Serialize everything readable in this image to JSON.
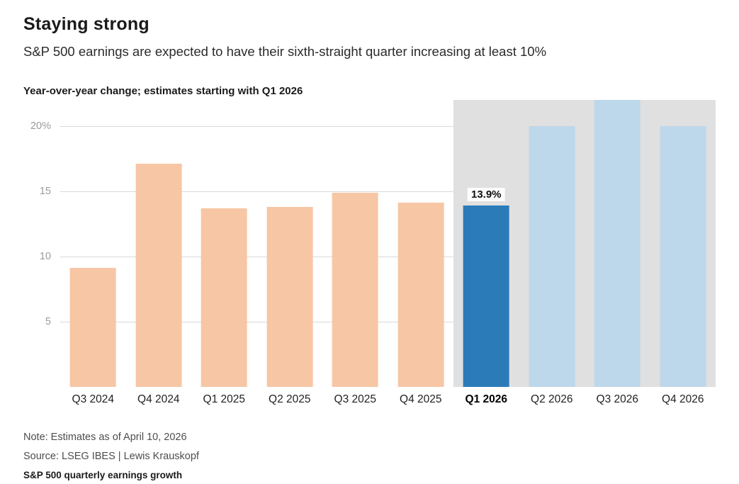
{
  "header": {
    "title": "Staying strong",
    "subtitle": "S&P 500 earnings are expected to have their sixth-straight quarter increasing at least 10%"
  },
  "chart_data": {
    "type": "bar",
    "title": "Staying strong",
    "axis_note": "Year-over-year change; estimates starting with Q1 2026",
    "categories": [
      "Q3 2024",
      "Q4 2024",
      "Q1 2025",
      "Q2 2025",
      "Q3 2025",
      "Q4 2025",
      "Q1 2026",
      "Q2 2026",
      "Q3 2026",
      "Q4 2026"
    ],
    "values": [
      9.1,
      17.1,
      13.7,
      13.8,
      14.9,
      14.1,
      13.9,
      20.0,
      22.0,
      20.0
    ],
    "ylim": [
      0,
      22
    ],
    "gridlines": [
      20,
      15,
      10,
      5
    ],
    "y_tick_labels": [
      "20%",
      "15",
      "10",
      "5"
    ],
    "estimate_from_index": 6,
    "highlight_index": 6,
    "data_label": {
      "index": 6,
      "text": "13.9%"
    },
    "legend_position": "none",
    "grid": "on",
    "colors": {
      "actual": "#f7c6a5",
      "highlight": "#2b7bb9",
      "estimate": "#bdd7eb",
      "estimate_band": "#e0e0e0",
      "gridline": "#d9d9d9",
      "accent_rule": "#3a62b0"
    }
  },
  "footer": {
    "note": "Note: Estimates as of April 10, 2026",
    "source": "Source: LSEG IBES | Lewis Krauskopf",
    "slug": "S&P 500 quarterly earnings growth"
  }
}
